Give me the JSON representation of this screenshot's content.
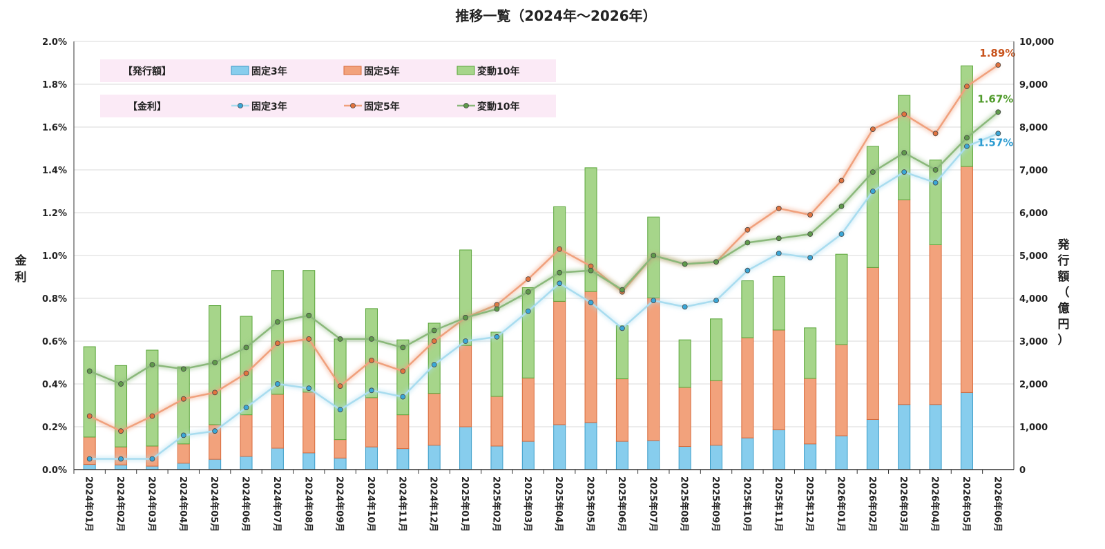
{
  "chart_data": {
    "type": "bar",
    "title": "推移一覧（2024年～2026年）",
    "ylabel_left": "金利",
    "ylabel_right": "発行額（億円）",
    "y_left": {
      "min": 0,
      "max": 2.0,
      "ticks": [
        "0.0%",
        "0.2%",
        "0.4%",
        "0.6%",
        "0.8%",
        "1.0%",
        "1.2%",
        "1.4%",
        "1.6%",
        "1.8%",
        "2.0%"
      ]
    },
    "y_right": {
      "min": 0,
      "max": 10000,
      "ticks": [
        "0",
        "1,000",
        "2,000",
        "3,000",
        "4,000",
        "5,000",
        "6,000",
        "7,000",
        "8,000",
        "9,000",
        "10,000"
      ]
    },
    "grid": true,
    "categories": [
      "2024年01月",
      "2024年02月",
      "2024年03月",
      "2024年04月",
      "2024年05月",
      "2024年06月",
      "2024年07月",
      "2024年08月",
      "2024年09月",
      "2024年10月",
      "2024年11月",
      "2024年12月",
      "2025年01月",
      "2025年02月",
      "2025年03月",
      "2025年04月",
      "2025年05月",
      "2025年06月",
      "2025年07月",
      "2025年08月",
      "2025年09月",
      "2025年10月",
      "2025年11月",
      "2025年12月",
      "2026年01月",
      "2026年02月",
      "2026年03月",
      "2026年04月",
      "2026年05月",
      "2026年06月"
    ],
    "legend": {
      "issue_header": "【発行額】",
      "rate_header": "【金利】",
      "items": [
        "固定3年",
        "固定5年",
        "変動10年"
      ]
    },
    "bar_series": [
      {
        "name": "固定3年",
        "axis": "right",
        "color": "#87cded",
        "stroke": "#3a9cc8",
        "values": [
          120,
          110,
          80,
          150,
          240,
          310,
          500,
          390,
          270,
          530,
          490,
          570,
          1000,
          550,
          660,
          1050,
          1100,
          660,
          680,
          540,
          570,
          740,
          930,
          600,
          790,
          1170,
          1520,
          1520,
          1800,
          0
        ]
      },
      {
        "name": "固定5年",
        "axis": "right",
        "color": "#f2a27c",
        "stroke": "#d86a3a",
        "values": [
          640,
          420,
          470,
          450,
          810,
          970,
          1260,
          1420,
          430,
          1150,
          790,
          1210,
          1900,
          1160,
          1480,
          2880,
          3060,
          1460,
          3330,
          1380,
          1510,
          2340,
          2330,
          1530,
          2130,
          3550,
          4780,
          3730,
          5280,
          0
        ]
      },
      {
        "name": "変動10年",
        "axis": "right",
        "color": "#a6d58a",
        "stroke": "#5aa53a",
        "values": [
          2110,
          1900,
          2240,
          1800,
          2780,
          2300,
          2890,
          2840,
          2350,
          2080,
          1750,
          1640,
          2230,
          1500,
          2110,
          2210,
          2890,
          1240,
          1890,
          1110,
          1440,
          1330,
          1250,
          1180,
          2110,
          2830,
          2440,
          1980,
          2350,
          0
        ]
      }
    ],
    "line_series": [
      {
        "name": "固定3年",
        "axis": "left",
        "color": "#a8dcef",
        "marker": "#3aa7d8",
        "values": [
          0.05,
          0.05,
          0.05,
          0.16,
          0.18,
          0.29,
          0.4,
          0.38,
          0.28,
          0.37,
          0.34,
          0.49,
          0.6,
          0.62,
          0.74,
          0.87,
          0.78,
          0.66,
          0.79,
          0.76,
          0.79,
          0.93,
          1.01,
          0.99,
          1.1,
          1.3,
          1.39,
          1.34,
          1.51,
          1.57
        ]
      },
      {
        "name": "固定5年",
        "axis": "left",
        "color": "#f0a07c",
        "marker": "#e2733f",
        "values": [
          0.25,
          0.18,
          0.25,
          0.33,
          0.36,
          0.45,
          0.59,
          0.61,
          0.39,
          0.51,
          0.46,
          0.6,
          0.71,
          0.77,
          0.89,
          1.03,
          0.95,
          0.83,
          1.0,
          0.96,
          0.97,
          1.12,
          1.22,
          1.19,
          1.35,
          1.59,
          1.66,
          1.57,
          1.79,
          1.89
        ]
      },
      {
        "name": "変動10年",
        "axis": "left",
        "color": "#8ab87a",
        "marker": "#5e9a4a",
        "values": [
          0.46,
          0.4,
          0.49,
          0.47,
          0.5,
          0.57,
          0.69,
          0.72,
          0.61,
          0.61,
          0.57,
          0.65,
          0.71,
          0.75,
          0.83,
          0.92,
          0.93,
          0.84,
          1.0,
          0.96,
          0.97,
          1.06,
          1.08,
          1.1,
          1.23,
          1.39,
          1.48,
          1.4,
          1.55,
          1.67
        ]
      }
    ],
    "end_labels": [
      {
        "series": "固定5年",
        "text": "1.89%",
        "color": "#c8531c"
      },
      {
        "series": "変動10年",
        "text": "1.67%",
        "color": "#4f9a2a"
      },
      {
        "series": "固定3年",
        "text": "1.57%",
        "color": "#2b9bd0"
      }
    ]
  }
}
